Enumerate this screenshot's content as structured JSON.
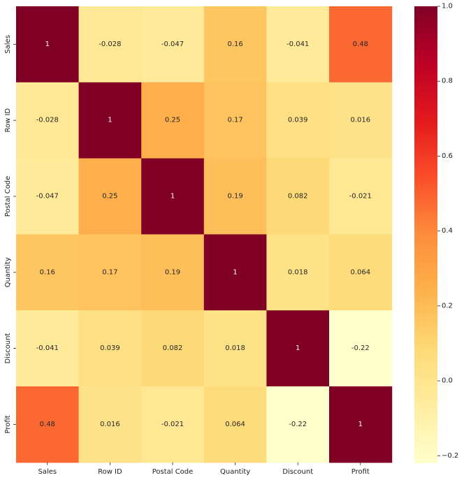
{
  "chart_data": {
    "type": "heatmap",
    "title": "",
    "xlabel": "",
    "ylabel": "",
    "x_categories": [
      "Sales",
      "Row ID",
      "Postal Code",
      "Quantity",
      "Discount",
      "Profit"
    ],
    "y_categories": [
      "Sales",
      "Row ID",
      "Postal Code",
      "Quantity",
      "Discount",
      "Profit"
    ],
    "values": [
      [
        1,
        -0.028,
        -0.047,
        0.16,
        -0.041,
        0.48
      ],
      [
        -0.028,
        1,
        0.25,
        0.17,
        0.039,
        0.016
      ],
      [
        -0.047,
        0.25,
        1,
        0.19,
        0.082,
        -0.021
      ],
      [
        0.16,
        0.17,
        0.19,
        1,
        0.018,
        0.064
      ],
      [
        -0.041,
        0.039,
        0.082,
        0.018,
        1,
        -0.22
      ],
      [
        0.48,
        0.016,
        -0.021,
        0.064,
        -0.22,
        1
      ]
    ],
    "annotations": [
      [
        "1",
        "-0.028",
        "-0.047",
        "0.16",
        "-0.041",
        "0.48"
      ],
      [
        "-0.028",
        "1",
        "0.25",
        "0.17",
        "0.039",
        "0.016"
      ],
      [
        "-0.047",
        "0.25",
        "1",
        "0.19",
        "0.082",
        "-0.021"
      ],
      [
        "0.16",
        "0.17",
        "0.19",
        "1",
        "0.018",
        "0.064"
      ],
      [
        "-0.041",
        "0.039",
        "0.082",
        "0.018",
        "1",
        "-0.22"
      ],
      [
        "0.48",
        "0.016",
        "-0.021",
        "0.064",
        "-0.22",
        "1"
      ]
    ],
    "colormap": "YlOrRd",
    "colormap_stops": [
      "#ffffcc",
      "#ffeda0",
      "#fed976",
      "#feb24c",
      "#fd8d3c",
      "#fc4e2a",
      "#e31a1c",
      "#bd0026",
      "#800026"
    ],
    "vmin": -0.22,
    "vmax": 1,
    "colorbar": {
      "ticks": [
        -0.2,
        0.0,
        0.2,
        0.4,
        0.6,
        0.8,
        1.0
      ],
      "tick_labels": [
        "−0.2",
        "0.0",
        "0.2",
        "0.4",
        "0.6",
        "0.8",
        "1.0"
      ]
    },
    "grid": false,
    "legend": "colorbar-right"
  }
}
